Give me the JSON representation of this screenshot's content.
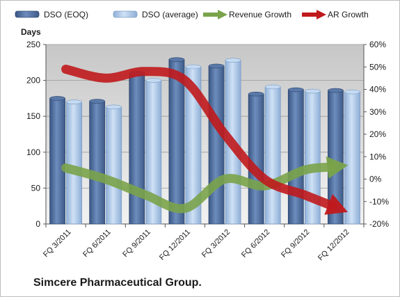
{
  "chart_data": {
    "type": "bar",
    "title": "Simcere Pharmaceutical Group.",
    "ylabel": "Days",
    "categories": [
      "FQ 3/2011",
      "FQ 6/2011",
      "FQ 9/2011",
      "FQ 12/2011",
      "FQ 3/2012",
      "FQ 6/2012",
      "FQ 9/2012",
      "FQ 12/2012"
    ],
    "bar_series": [
      {
        "name": "DSO (EOQ)",
        "color": "#4f6f9e",
        "axis": "left",
        "values": [
          175,
          171,
          210,
          229,
          220,
          181,
          187,
          186
        ]
      },
      {
        "name": "DSO (average)",
        "color": "#a9c6e8",
        "axis": "left",
        "values": [
          170,
          163,
          200,
          219,
          228,
          191,
          185,
          184
        ]
      }
    ],
    "line_series": [
      {
        "name": "Revenue Growth",
        "color": "#7aa34a",
        "axis": "right",
        "values": [
          5,
          0,
          -7,
          -13,
          0,
          -3,
          4,
          6
        ]
      },
      {
        "name": "AR Growth",
        "color": "#c0191c",
        "axis": "right",
        "values": [
          49,
          45,
          48,
          44,
          20,
          0,
          -7,
          -14
        ]
      }
    ],
    "y_left": {
      "min": 0,
      "max": 250,
      "ticks": [
        0,
        50,
        100,
        150,
        200,
        250
      ]
    },
    "y_right": {
      "min": -20,
      "max": 60,
      "ticks": [
        "-20%",
        "-10%",
        "0%",
        "10%",
        "20%",
        "30%",
        "40%",
        "50%",
        "60%"
      ]
    },
    "legend_position": "top",
    "grid": true
  }
}
